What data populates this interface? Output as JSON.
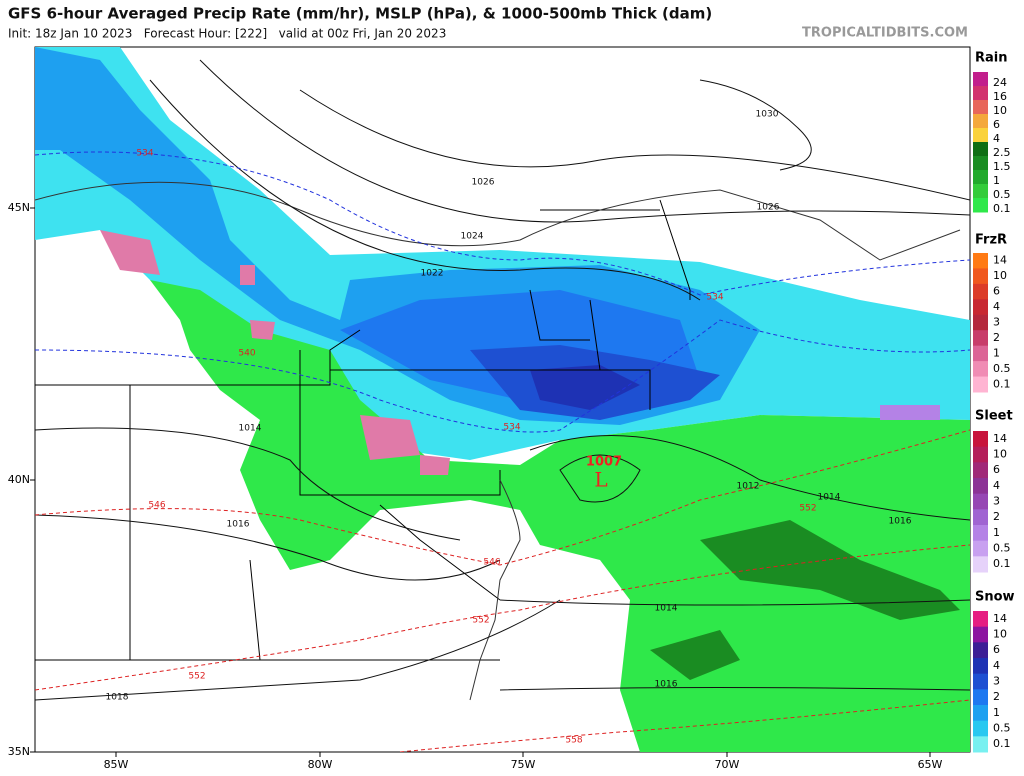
{
  "header": {
    "title": "GFS 6-hour Averaged Precip Rate (mm/hr), MSLP (hPa), & 1000-500mb Thick (dam)",
    "subtitle": "Init: 18z Jan 10 2023   Forecast Hour: [222]   valid at 00z Fri, Jan 20 2023",
    "watermark": "TROPICALTIDBITS.COM"
  },
  "map": {
    "lat_labels": [
      "45N",
      "40N",
      "35N"
    ],
    "lon_labels": [
      "85W",
      "80W",
      "75W",
      "70W",
      "65W"
    ],
    "isobar_labels": [
      "1030",
      "1026",
      "1026",
      "1024",
      "1022",
      "1014",
      "1016",
      "1018",
      "1012",
      "1014",
      "1016",
      "1014",
      "1016"
    ],
    "thickness_labels": [
      "534",
      "534",
      "534",
      "540",
      "546",
      "546",
      "552",
      "552",
      "552",
      "558"
    ],
    "low": {
      "symbol": "L",
      "pressure": "1007"
    }
  },
  "legend": [
    {
      "title": "Rain",
      "items": [
        {
          "label": "24",
          "color": "#c21e8c"
        },
        {
          "label": "16",
          "color": "#d2326e"
        },
        {
          "label": "10",
          "color": "#e8665a"
        },
        {
          "label": "6",
          "color": "#f4a83c"
        },
        {
          "label": "4",
          "color": "#fad23c"
        },
        {
          "label": "2.5",
          "color": "#0f6e14"
        },
        {
          "label": "1.5",
          "color": "#1a8c22"
        },
        {
          "label": "1",
          "color": "#22aa2c"
        },
        {
          "label": "0.5",
          "color": "#34cc3a"
        },
        {
          "label": "0.1",
          "color": "#2fe84a"
        }
      ]
    },
    {
      "title": "FrzR",
      "items": [
        {
          "label": "14",
          "color": "#ff7a14"
        },
        {
          "label": "10",
          "color": "#f0581e"
        },
        {
          "label": "6",
          "color": "#dc3c28"
        },
        {
          "label": "4",
          "color": "#c82832"
        },
        {
          "label": "3",
          "color": "#b4283c"
        },
        {
          "label": "2",
          "color": "#c83c6a"
        },
        {
          "label": "1",
          "color": "#dc6496"
        },
        {
          "label": "0.5",
          "color": "#f08cb4"
        },
        {
          "label": "0.1",
          "color": "#ffb4d2"
        }
      ]
    },
    {
      "title": "Sleet",
      "items": [
        {
          "label": "14",
          "color": "#c8143c"
        },
        {
          "label": "10",
          "color": "#b41e5a"
        },
        {
          "label": "6",
          "color": "#a02878"
        },
        {
          "label": "4",
          "color": "#8c3296"
        },
        {
          "label": "3",
          "color": "#9646b4"
        },
        {
          "label": "2",
          "color": "#a064d2"
        },
        {
          "label": "1",
          "color": "#b482e6"
        },
        {
          "label": "0.5",
          "color": "#c8a0f0"
        },
        {
          "label": "0.1",
          "color": "#e6d2fa"
        }
      ]
    },
    {
      "title": "Snow",
      "items": [
        {
          "label": "14",
          "color": "#e61e82"
        },
        {
          "label": "10",
          "color": "#8c14a0"
        },
        {
          "label": "6",
          "color": "#3c1e96"
        },
        {
          "label": "4",
          "color": "#1e32b4"
        },
        {
          "label": "3",
          "color": "#1e50d2"
        },
        {
          "label": "2",
          "color": "#1e78f0"
        },
        {
          "label": "1",
          "color": "#1ea0f0"
        },
        {
          "label": "0.5",
          "color": "#28c8f0"
        },
        {
          "label": "0.1",
          "color": "#78f0f0"
        }
      ]
    }
  ]
}
